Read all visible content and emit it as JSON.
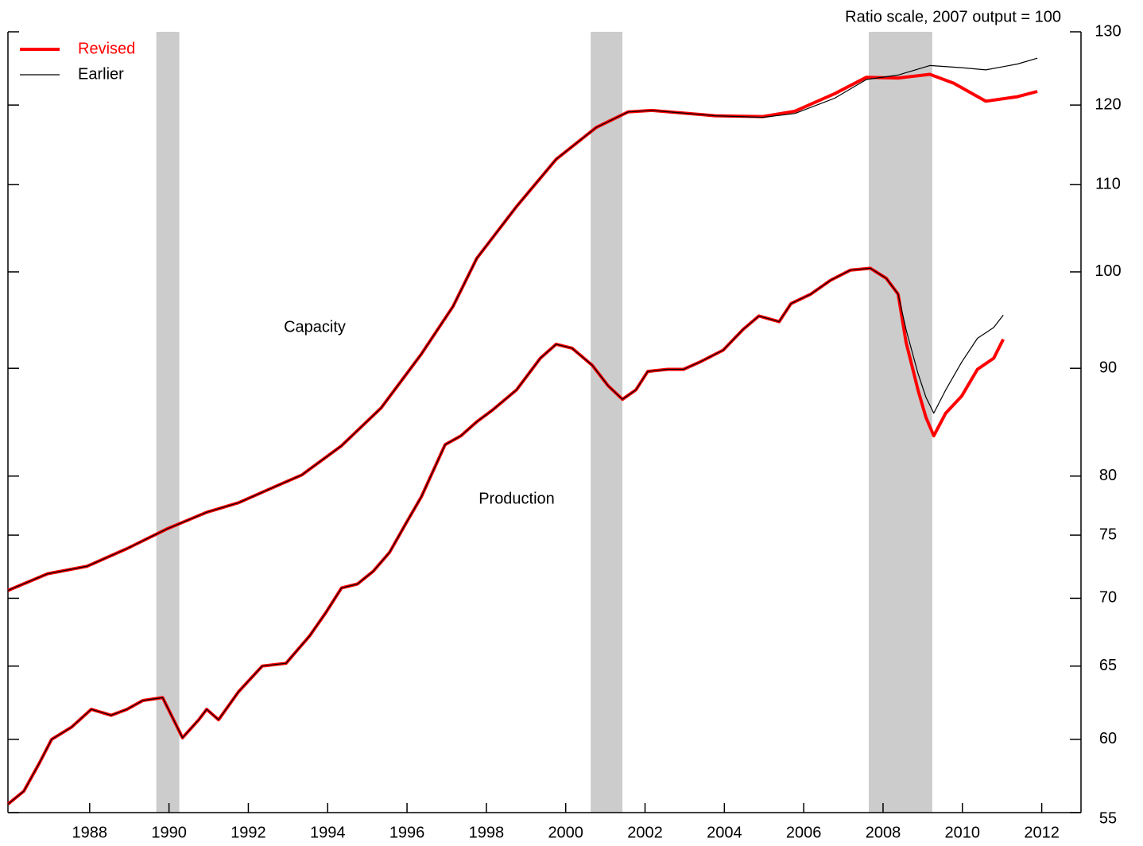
{
  "chart_data": {
    "type": "line",
    "subtitle": "Ratio scale, 2007 output = 100",
    "log_scale": true,
    "legend": "upper left",
    "xlim": [
      1985.94,
      2012.99
    ],
    "xticks": [
      1988,
      1990,
      1992,
      1994,
      1996,
      1998,
      2000,
      2002,
      2004,
      2006,
      2008,
      2010,
      2012
    ],
    "ylim": [
      55,
      130
    ],
    "yticks": [
      55,
      60,
      65,
      70,
      75,
      80,
      90,
      100,
      110,
      120,
      130
    ],
    "recessions": [
      [
        1989.68,
        1990.26
      ],
      [
        2000.63,
        2001.43
      ],
      [
        2007.64,
        2009.24
      ]
    ],
    "recession_color": "#cccccc",
    "annotations": [
      "Capacity",
      "Production"
    ],
    "series": [
      {
        "name": "Revised",
        "color": "#ff0000",
        "capacity": {
          "x": [
            1985.94,
            1986.94,
            1987.94,
            1988.94,
            1989.94,
            1990.95,
            1991.75,
            1992.75,
            1993.35,
            1994.35,
            1995.35,
            1996.36,
            1997.16,
            1997.76,
            1998.76,
            1999.76,
            2000.77,
            2001.57,
            2002.17,
            2003.77,
            2004.97,
            2005.78,
            2006.78,
            2007.58,
            2008.38,
            2009.18,
            2009.78,
            2010.59,
            2011.39,
            2011.89
          ],
          "values": [
            70.6,
            71.9,
            72.5,
            73.9,
            75.5,
            76.9,
            77.7,
            79.2,
            80.1,
            82.7,
            86.2,
            91.4,
            96.3,
            101.5,
            107.4,
            113.1,
            117.1,
            119.1,
            119.3,
            118.6,
            118.5,
            119.2,
            121.5,
            123.7,
            123.6,
            124.1,
            122.9,
            120.5,
            121.1,
            121.8
          ]
        },
        "production": {
          "x": [
            1985.94,
            1986.34,
            1986.74,
            1987.04,
            1987.54,
            1988.04,
            1988.54,
            1988.94,
            1989.34,
            1989.84,
            1990.34,
            1990.75,
            1990.95,
            1991.25,
            1991.75,
            1992.35,
            1992.95,
            1993.55,
            1993.95,
            1994.35,
            1994.75,
            1995.15,
            1995.56,
            1995.96,
            1996.36,
            1996.96,
            1997.36,
            1997.76,
            1998.16,
            1998.76,
            1999.36,
            1999.76,
            2000.16,
            2000.67,
            2001.07,
            2001.43,
            2001.77,
            2002.07,
            2002.57,
            2002.97,
            2003.37,
            2003.97,
            2004.47,
            2004.87,
            2005.38,
            2005.68,
            2006.18,
            2006.68,
            2007.18,
            2007.68,
            2008.08,
            2008.38,
            2008.58,
            2008.88,
            2009.08,
            2009.28,
            2009.58,
            2009.98,
            2010.38,
            2010.79,
            2011.03
          ],
          "values": [
            55.9,
            56.7,
            58.5,
            60.0,
            60.8,
            62.0,
            61.6,
            62.0,
            62.6,
            62.8,
            60.1,
            61.3,
            62.0,
            61.3,
            63.2,
            65.0,
            65.2,
            67.2,
            68.9,
            70.8,
            71.1,
            72.1,
            73.6,
            75.9,
            78.2,
            82.8,
            83.6,
            84.9,
            86.0,
            87.9,
            91.0,
            92.4,
            92.0,
            90.3,
            88.3,
            87.0,
            87.9,
            89.7,
            89.9,
            89.9,
            90.6,
            91.8,
            93.9,
            95.3,
            94.7,
            96.6,
            97.6,
            99.1,
            100.2,
            100.4,
            99.3,
            97.6,
            92.6,
            87.9,
            85.3,
            83.6,
            85.7,
            87.3,
            89.9,
            91.0,
            92.9
          ]
        }
      },
      {
        "name": "Earlier",
        "color": "#000000",
        "capacity": {
          "x": [
            1985.94,
            1986.94,
            1987.94,
            1988.94,
            1989.94,
            1990.95,
            1991.75,
            1992.75,
            1993.35,
            1994.35,
            1995.35,
            1996.36,
            1997.16,
            1997.76,
            1998.76,
            1999.76,
            2000.77,
            2001.57,
            2002.17,
            2003.77,
            2004.97,
            2005.78,
            2006.78,
            2007.58,
            2008.38,
            2009.18,
            2009.98,
            2010.59,
            2011.39,
            2011.89
          ],
          "values": [
            70.6,
            71.9,
            72.5,
            73.9,
            75.5,
            76.9,
            77.7,
            79.2,
            80.1,
            82.7,
            86.2,
            91.4,
            96.3,
            101.5,
            107.4,
            113.1,
            117.1,
            119.1,
            119.3,
            118.6,
            118.4,
            118.9,
            120.9,
            123.4,
            124.0,
            125.3,
            125.0,
            124.7,
            125.5,
            126.3
          ]
        },
        "production": {
          "x": [
            1985.94,
            1986.34,
            1986.74,
            1987.04,
            1987.54,
            1988.04,
            1988.54,
            1988.94,
            1989.34,
            1989.84,
            1990.34,
            1990.75,
            1990.95,
            1991.25,
            1991.75,
            1992.35,
            1992.95,
            1993.55,
            1993.95,
            1994.35,
            1994.75,
            1995.15,
            1995.56,
            1995.96,
            1996.36,
            1996.96,
            1997.36,
            1997.76,
            1998.16,
            1998.76,
            1999.36,
            1999.76,
            2000.16,
            2000.67,
            2001.07,
            2001.43,
            2001.77,
            2002.07,
            2002.57,
            2002.97,
            2003.37,
            2003.97,
            2004.47,
            2004.87,
            2005.38,
            2005.68,
            2006.18,
            2006.68,
            2007.18,
            2007.68,
            2008.08,
            2008.38,
            2008.58,
            2008.88,
            2009.08,
            2009.28,
            2009.58,
            2009.98,
            2010.38,
            2010.79,
            2011.03
          ],
          "values": [
            55.9,
            56.7,
            58.5,
            60.0,
            60.8,
            62.0,
            61.6,
            62.0,
            62.6,
            62.8,
            60.1,
            61.3,
            62.0,
            61.3,
            63.2,
            65.0,
            65.2,
            67.2,
            68.9,
            70.8,
            71.1,
            72.1,
            73.6,
            75.9,
            78.2,
            82.8,
            83.6,
            84.9,
            86.0,
            87.9,
            91.0,
            92.4,
            92.0,
            90.3,
            88.3,
            87.0,
            87.9,
            89.7,
            89.9,
            89.9,
            90.6,
            91.8,
            93.9,
            95.3,
            94.7,
            96.6,
            97.6,
            99.1,
            100.2,
            100.4,
            99.3,
            97.6,
            93.9,
            89.5,
            87.2,
            85.7,
            87.9,
            90.6,
            93.0,
            94.1,
            95.4
          ]
        }
      }
    ]
  }
}
